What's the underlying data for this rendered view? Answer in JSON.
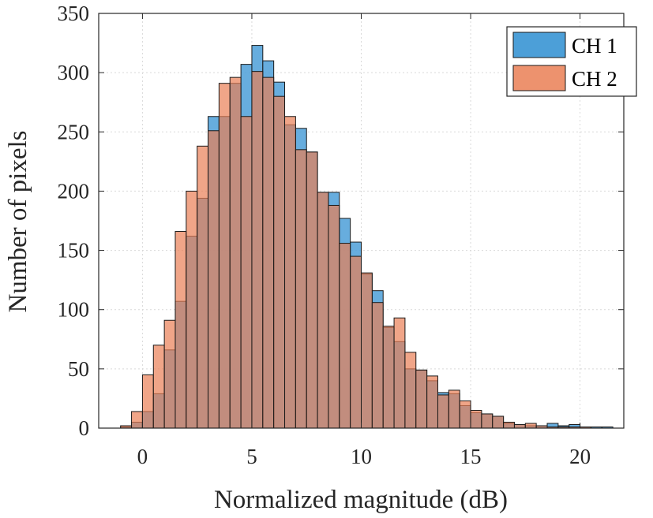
{
  "chart_data": {
    "type": "histogram",
    "title": "",
    "xlabel": "Normalized magnitude (dB)",
    "ylabel": "Number of pixels",
    "xlim": [
      -2,
      22
    ],
    "ylim": [
      0,
      350
    ],
    "xticks": [
      0,
      5,
      10,
      15,
      20
    ],
    "yticks": [
      0,
      50,
      100,
      150,
      200,
      250,
      300,
      350
    ],
    "grid": true,
    "legend_position": "top-right",
    "bin_width": 0.5,
    "bin_start": -1.0,
    "series": [
      {
        "name": "CH 1",
        "color": "#4c9fd8",
        "opacity": 0.85,
        "values": [
          1,
          5,
          14,
          29,
          66,
          107,
          162,
          194,
          263,
          263,
          291,
          307,
          323,
          310,
          292,
          256,
          253,
          233,
          199,
          199,
          177,
          157,
          130,
          116,
          85,
          73,
          50,
          49,
          40,
          30,
          29,
          19,
          13,
          12,
          10,
          4,
          3,
          2,
          2,
          4,
          2,
          3,
          1,
          1,
          1
        ]
      },
      {
        "name": "CH 2",
        "color": "#ea7f55",
        "opacity": 0.7,
        "values": [
          2,
          14,
          45,
          70,
          91,
          166,
          200,
          238,
          251,
          291,
          296,
          263,
          301,
          296,
          280,
          263,
          235,
          233,
          199,
          188,
          156,
          145,
          131,
          106,
          86,
          93,
          64,
          49,
          44,
          28,
          32,
          23,
          15,
          12,
          10,
          5,
          3,
          4,
          2,
          1,
          1,
          1,
          1,
          0,
          0
        ]
      }
    ]
  },
  "legend": {
    "ch1_label": "CH 1",
    "ch2_label": "CH 2"
  }
}
